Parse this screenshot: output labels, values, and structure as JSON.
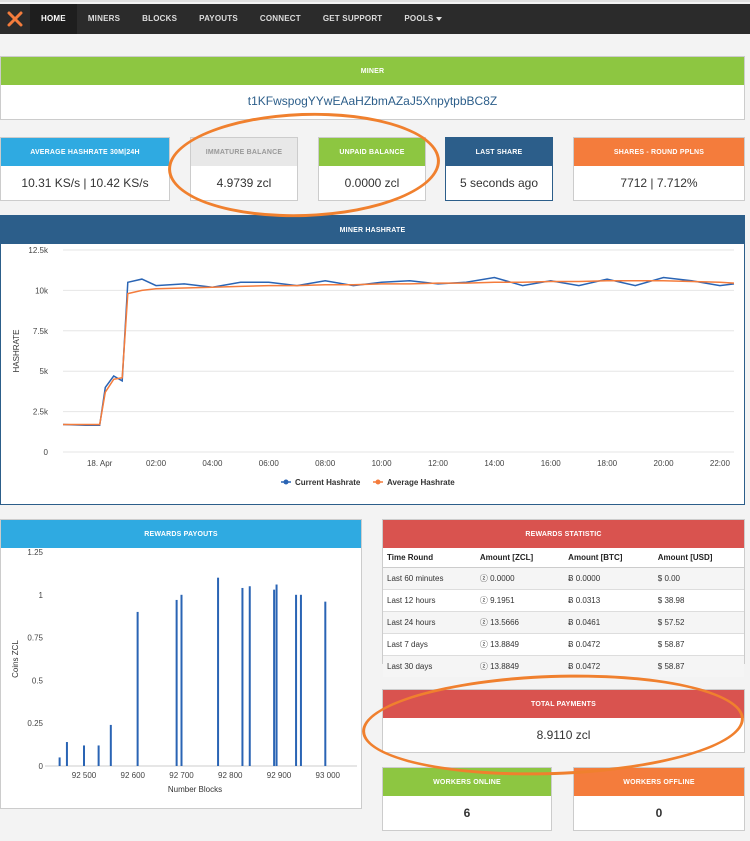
{
  "nav": {
    "items": [
      "HOME",
      "MINERS",
      "BLOCKS",
      "PAYOUTS",
      "CONNECT",
      "GET SUPPORT",
      "POOLS"
    ]
  },
  "miner": {
    "title": "MINER",
    "address": "t1KFwspogYYwEAaHZbmAZaJ5XnpytpbBC8Z"
  },
  "cards": [
    {
      "title": "AVERAGE HASHRATE 30M|24H",
      "value": "10.31 KS/s | 10.42 KS/s"
    },
    {
      "title": "IMMATURE BALANCE",
      "value": "4.9739 zcl"
    },
    {
      "title": "UNPAID BALANCE",
      "value": "0.0000 zcl"
    },
    {
      "title": "LAST SHARE",
      "value": "5 seconds ago"
    },
    {
      "title": "SHARES - ROUND PPLNS",
      "value": "7712 | 7.712%"
    }
  ],
  "hashrate_panel": {
    "title": "MINER HASHRATE"
  },
  "rewards_panel": {
    "title": "REWARDS PAYOUTS"
  },
  "rewards_stat": {
    "title": "REWARDS STATISTIC",
    "headers": [
      "Time Round",
      "Amount [ZCL]",
      "Amount [BTC]",
      "Amount [USD]"
    ],
    "rows": [
      [
        "Last 60 minutes",
        "ⓩ 0.0000",
        "Ƀ 0.0000",
        "$ 0.00"
      ],
      [
        "Last 12 hours",
        "ⓩ 9.1951",
        "Ƀ 0.0313",
        "$ 38.98"
      ],
      [
        "Last 24 hours",
        "ⓩ 13.5666",
        "Ƀ 0.0461",
        "$ 57.52"
      ],
      [
        "Last 7 days",
        "ⓩ 13.8849",
        "Ƀ 0.0472",
        "$ 58.87"
      ],
      [
        "Last 30 days",
        "ⓩ 13.8849",
        "Ƀ 0.0472",
        "$ 58.87"
      ]
    ]
  },
  "total_payments": {
    "title": "TOTAL PAYMENTS",
    "value": "8.9110 zcl"
  },
  "workers": {
    "online_title": "WORKERS ONLINE",
    "online_value": "6",
    "offline_title": "WORKERS OFFLINE",
    "offline_value": "0"
  },
  "colors": {
    "green": "#8dc641",
    "blue": "#2faae1",
    "navy": "#2c5e8a",
    "orange": "#f47c3c",
    "red": "#d9534f",
    "annotation": "#f0802e"
  },
  "chart_data": [
    {
      "type": "line",
      "ylabel": "HASHRATE",
      "yticks": [
        "0",
        "2.5k",
        "5k",
        "7.5k",
        "10k",
        "12.5k"
      ],
      "ylim": [
        0,
        12500
      ],
      "xticks": [
        "18. Apr",
        "02:00",
        "04:00",
        "06:00",
        "08:00",
        "10:00",
        "12:00",
        "14:00",
        "16:00",
        "18:00",
        "20:00",
        "22:00"
      ],
      "xlim": [
        -1.3,
        22.5
      ],
      "series": [
        {
          "name": "Current Hashrate",
          "color": "#2a64b4",
          "x": [
            -1.3,
            -0.5,
            0,
            0.2,
            0.5,
            0.8,
            1.0,
            1.5,
            2,
            3,
            4,
            5,
            6,
            7,
            8,
            9,
            10,
            11,
            12,
            13,
            14,
            15,
            16,
            17,
            18,
            19,
            20,
            21,
            22,
            22.5
          ],
          "y": [
            1700,
            1650,
            1650,
            4000,
            4700,
            4400,
            10500,
            10700,
            10300,
            10400,
            10200,
            10500,
            10500,
            10300,
            10600,
            10300,
            10500,
            10600,
            10400,
            10500,
            10800,
            10300,
            10600,
            10300,
            10700,
            10300,
            10800,
            10600,
            10300,
            10400
          ]
        },
        {
          "name": "Average Hashrate",
          "color": "#f47c3c",
          "x": [
            -1.3,
            -0.5,
            0,
            0.2,
            0.5,
            0.8,
            1.0,
            1.5,
            2,
            3,
            4,
            5,
            6,
            7,
            8,
            9,
            10,
            11,
            12,
            13,
            14,
            15,
            16,
            17,
            18,
            19,
            20,
            21,
            22,
            22.5
          ],
          "y": [
            1700,
            1700,
            1700,
            3700,
            4500,
            4600,
            9800,
            10000,
            10100,
            10150,
            10200,
            10250,
            10300,
            10300,
            10350,
            10350,
            10400,
            10400,
            10450,
            10450,
            10500,
            10500,
            10550,
            10550,
            10600,
            10600,
            10600,
            10550,
            10500,
            10450
          ]
        }
      ]
    },
    {
      "type": "bar",
      "xlabel": "Number Blocks",
      "ylabel": "Coins ZCL",
      "yticks": [
        "0",
        "0.25",
        "0.5",
        "0.75",
        "1",
        "1.25"
      ],
      "ylim": [
        0,
        1.25
      ],
      "xticks": [
        "92 500",
        "92 600",
        "92 700",
        "92 800",
        "92 900",
        "93 000"
      ],
      "xlim": [
        92420,
        93060
      ],
      "color": "#2a64b4",
      "x": [
        92450,
        92465,
        92500,
        92530,
        92555,
        92610,
        92690,
        92700,
        92775,
        92825,
        92840,
        92890,
        92895,
        92935,
        92945,
        92995
      ],
      "values": [
        0.05,
        0.14,
        0.12,
        0.12,
        0.24,
        0.9,
        0.97,
        1.0,
        1.1,
        1.04,
        1.05,
        1.03,
        1.06,
        1.0,
        1.0,
        0.96
      ]
    }
  ]
}
